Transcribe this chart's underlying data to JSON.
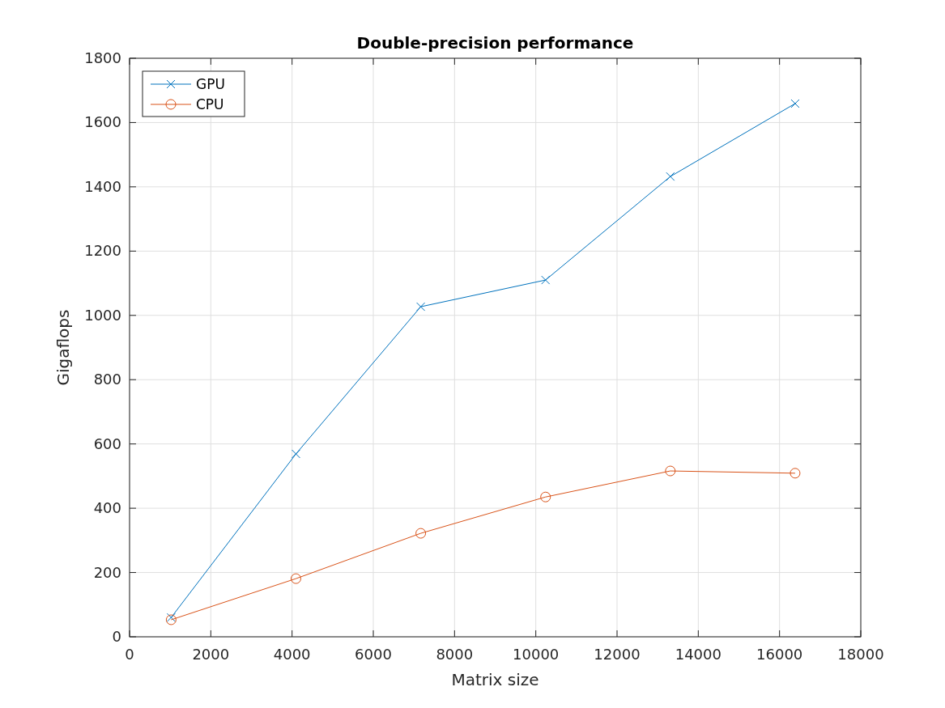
{
  "chart_data": {
    "type": "line",
    "title": "Double-precision performance",
    "xlabel": "Matrix size",
    "ylabel": "Gigaflops",
    "x": [
      1024,
      4096,
      7168,
      10240,
      13312,
      16384
    ],
    "series": [
      {
        "name": "GPU",
        "color": "#0072bd",
        "marker": "cross",
        "values": [
          60,
          569,
          1027,
          1110,
          1432,
          1659
        ]
      },
      {
        "name": "CPU",
        "color": "#d95319",
        "marker": "circle",
        "values": [
          53,
          181,
          322,
          435,
          516,
          509
        ]
      }
    ],
    "xlim": [
      0,
      18000
    ],
    "xticks": [
      0,
      2000,
      4000,
      6000,
      8000,
      10000,
      12000,
      14000,
      16000,
      18000
    ],
    "ylim": [
      0,
      1800
    ],
    "yticks": [
      0,
      200,
      400,
      600,
      800,
      1000,
      1200,
      1400,
      1600,
      1800
    ],
    "grid": true,
    "legend": "top left",
    "line_style": "solid"
  }
}
